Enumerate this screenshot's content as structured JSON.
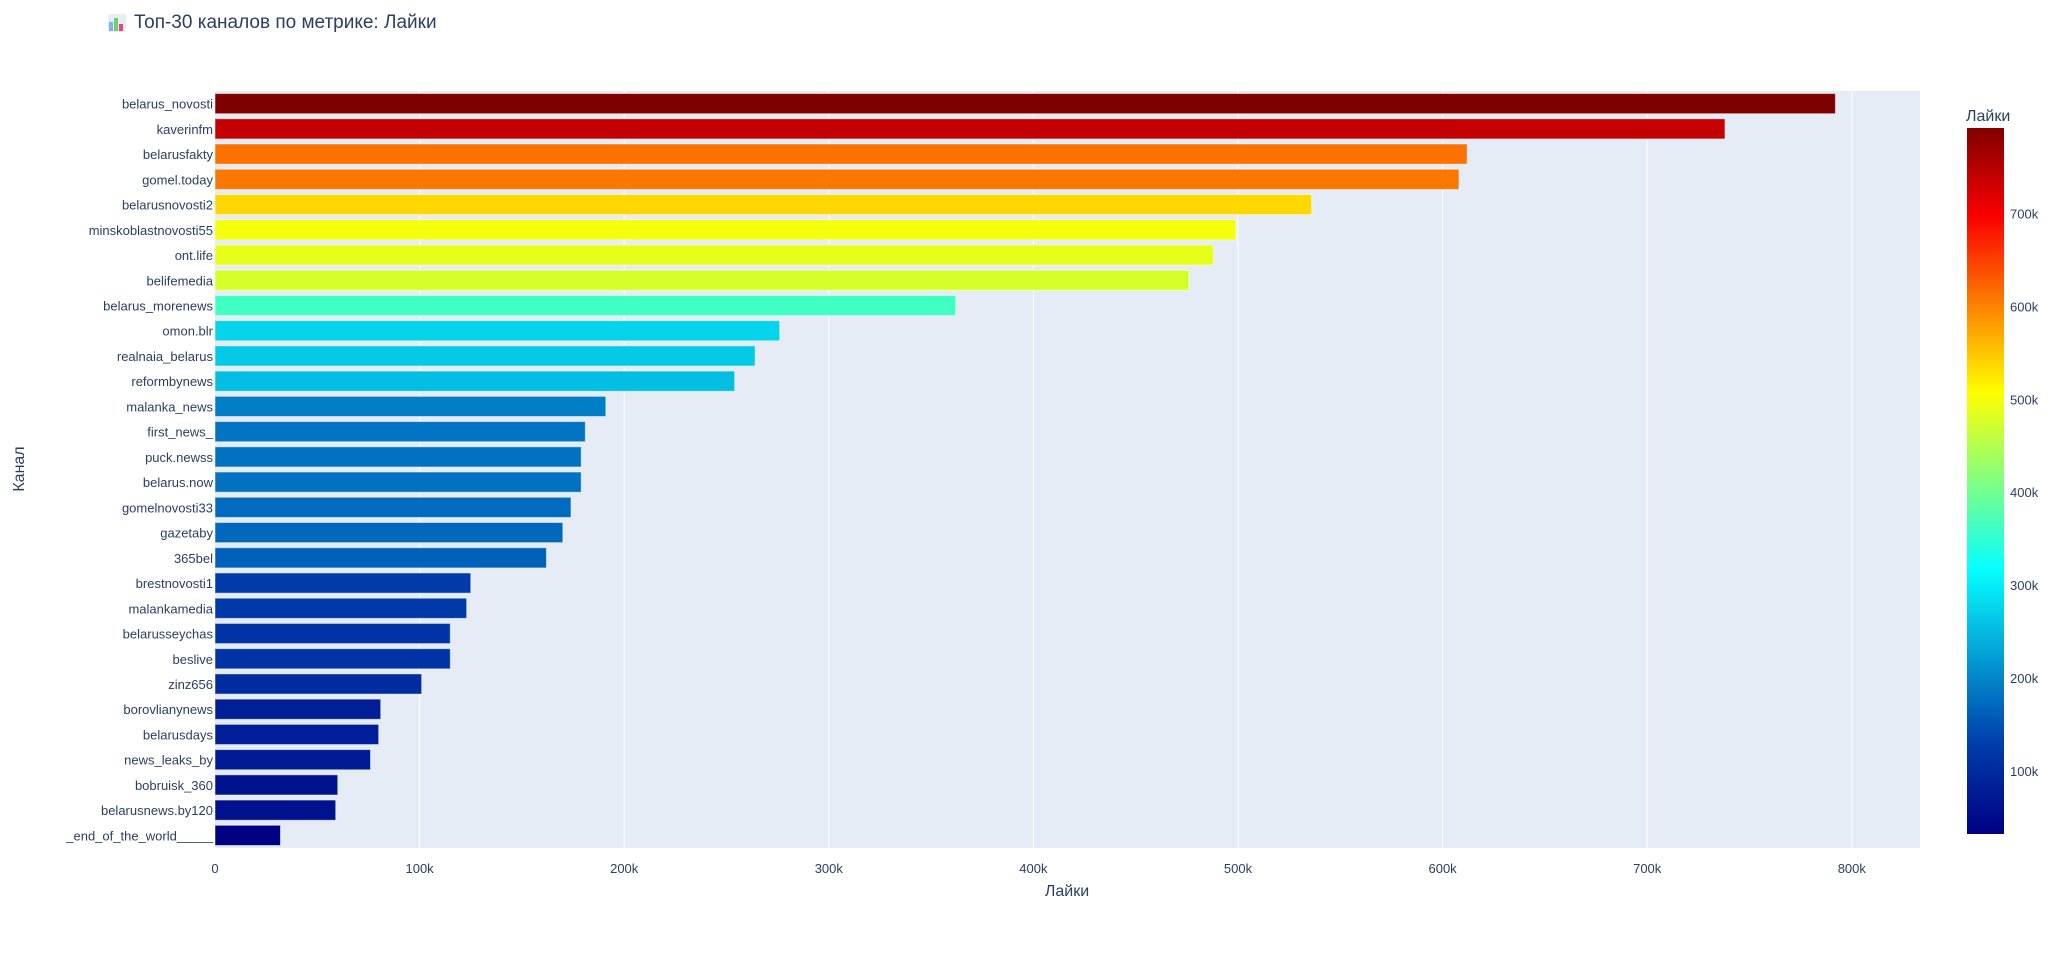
{
  "title": {
    "icon": "bar-chart-icon",
    "text": "Топ-30 каналов по метрике: Лайки"
  },
  "chart_data": {
    "type": "bar",
    "orientation": "horizontal",
    "title": "Топ-30 каналов по метрике: Лайки",
    "xlabel": "Лайки",
    "ylabel": "Канал",
    "xlim": [
      0,
      832000
    ],
    "x_ticks": [
      0,
      100000,
      200000,
      300000,
      400000,
      500000,
      600000,
      700000,
      800000
    ],
    "x_tick_labels": [
      "0",
      "100k",
      "200k",
      "300k",
      "400k",
      "500k",
      "600k",
      "700k",
      "800k"
    ],
    "grid": true,
    "categories": [
      "belarus_novosti",
      "kaverinfm",
      "belarusfakty",
      "gomel.today",
      "belarusnovosti2",
      "minskoblastnovosti55",
      "ont.life",
      "belifemedia",
      "belarus_morenews",
      "omon.blr",
      "realnaia_belarus",
      "reformbynews",
      "malanka_news",
      "first_news_",
      "puck.newss",
      "belarus.now",
      "gomelnovosti33",
      "gazetaby",
      "365bel",
      "brestnovosti1",
      "malankamedia",
      "belarusseychas",
      "beslive",
      "zinz656",
      "borovlianynews",
      "belarusdays",
      "news_leaks_by",
      "bobruisk_360",
      "belarusnews.by120",
      "_end_of_the_world_____"
    ],
    "values": [
      792000,
      738000,
      612000,
      608000,
      536000,
      499000,
      488000,
      476000,
      362000,
      276000,
      264000,
      254000,
      191000,
      181000,
      179000,
      179000,
      174000,
      170000,
      162000,
      125000,
      123000,
      115000,
      115000,
      101000,
      81000,
      80000,
      76000,
      60000,
      59000,
      32000
    ],
    "colorbar": {
      "title": "Лайки",
      "colorscale": "Jet",
      "range": [
        32000,
        792000
      ],
      "ticks": [
        100000,
        200000,
        300000,
        400000,
        500000,
        600000,
        700000
      ],
      "tick_labels": [
        "100k",
        "200k",
        "300k",
        "400k",
        "500k",
        "600k",
        "700k"
      ],
      "placement": "right"
    }
  }
}
